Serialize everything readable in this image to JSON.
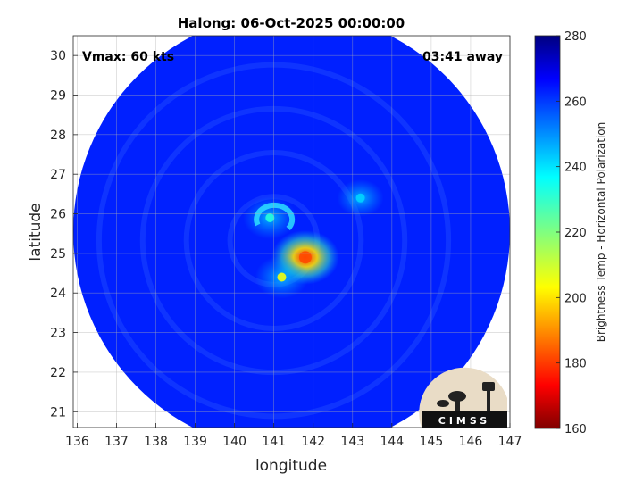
{
  "chart_data": {
    "type": "heatmap",
    "title": "Halong: 06-Oct-2025 00:00:00",
    "annotations": {
      "vmax": "Vmax: 60 kts",
      "time_away": "03:41 away"
    },
    "xlabel": "longitude",
    "ylabel": "latitude",
    "xlim": [
      135.9,
      147.0
    ],
    "ylim": [
      20.6,
      30.5
    ],
    "xticks": [
      136,
      137,
      138,
      139,
      140,
      141,
      142,
      143,
      144,
      145,
      146,
      147
    ],
    "yticks": [
      21,
      22,
      23,
      24,
      25,
      26,
      27,
      28,
      29,
      30
    ],
    "grid": true,
    "colorbar": {
      "label": "Brightness Temp - Horizontal Polarization",
      "range": [
        160,
        280
      ],
      "ticks": [
        160,
        180,
        200,
        220,
        240,
        260,
        280
      ],
      "colormap": "jet"
    },
    "swath": {
      "center": [
        141.45,
        25.55
      ],
      "radius_deg": 5.55,
      "background_temp": 263
    },
    "features": [
      {
        "name": "eyewall-core",
        "lon": 141.8,
        "lat": 24.9,
        "temp": 182
      },
      {
        "name": "inner-rainband",
        "lon": 141.2,
        "lat": 24.4,
        "temp": 205
      },
      {
        "name": "eye-ring",
        "lon": 140.9,
        "lat": 25.9,
        "temp": 232
      },
      {
        "name": "outer-band-east",
        "lon": 143.2,
        "lat": 26.4,
        "temp": 242
      }
    ]
  },
  "logo": {
    "text": "CIMSS"
  }
}
